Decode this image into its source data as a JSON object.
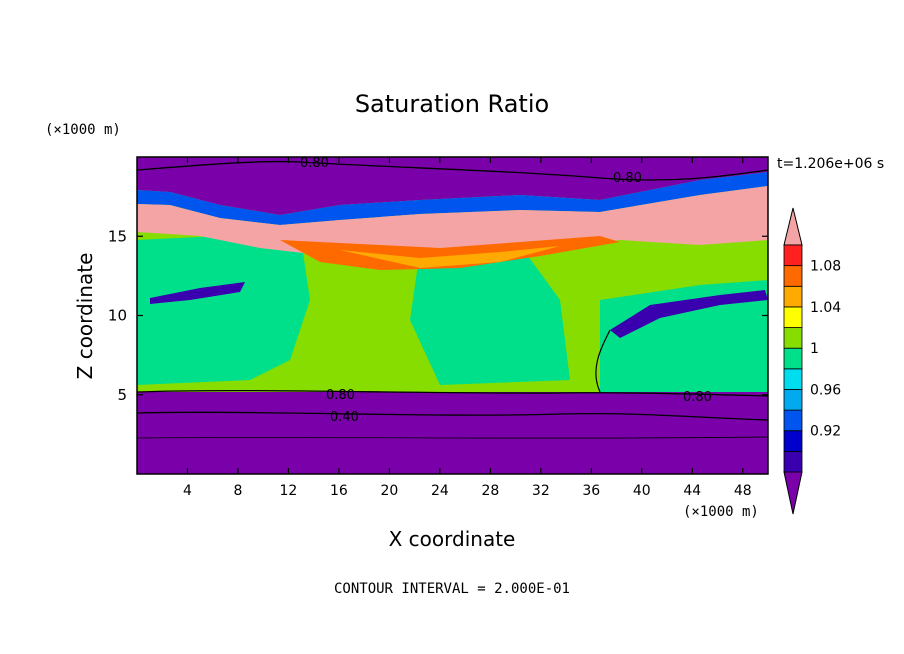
{
  "chart_data": {
    "type": "heatmap",
    "title": "Saturation Ratio",
    "time_label": "t=1.206e+06 s",
    "xlabel": "X coordinate",
    "ylabel": "Z coordinate",
    "x_unit": "(×1000 m)",
    "y_unit": "(×1000 m)",
    "xlim": [
      0,
      50
    ],
    "ylim": [
      0,
      20
    ],
    "x_ticks": [
      4,
      8,
      12,
      16,
      20,
      24,
      28,
      32,
      36,
      40,
      44,
      48
    ],
    "y_ticks": [
      5,
      10,
      15
    ],
    "colorbar": {
      "levels": [
        0.9,
        0.92,
        0.94,
        0.96,
        0.98,
        1.0,
        1.02,
        1.04,
        1.06,
        1.08,
        1.1
      ],
      "colors": [
        "#7a00aa",
        "#3a00b0",
        "#0000cc",
        "#0055ee",
        "#00aaee",
        "#00ddee",
        "#00e08a",
        "#88dd00",
        "#ffff00",
        "#ffaa00",
        "#ff6a00",
        "#ff2020",
        "#f4a4a4"
      ],
      "labels": [
        "0.92",
        "0.96",
        "1",
        "1.04",
        "1.08"
      ]
    },
    "contour_labels": [
      "0.80",
      "0.80",
      "0.80",
      "0.80",
      "0.40"
    ],
    "footer": "CONTOUR INTERVAL = 2.000E-01"
  }
}
